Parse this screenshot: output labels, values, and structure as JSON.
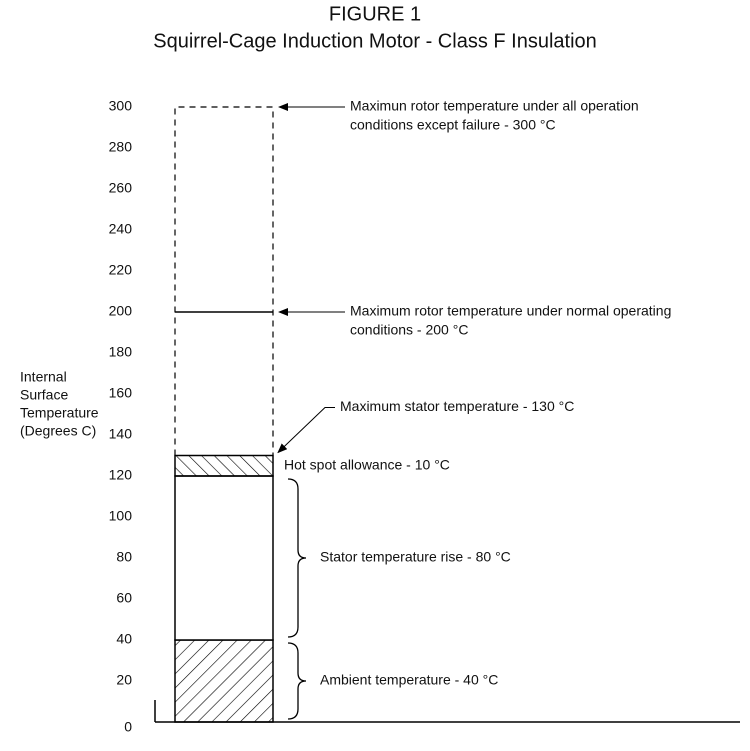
{
  "chart_data": {
    "type": "stacked-bar",
    "title": "FIGURE 1",
    "subtitle": "Squirrel-Cage Induction Motor - Class F Insulation",
    "y_label": [
      "Internal",
      "Surface",
      "Temperature",
      "(Degrees C)"
    ],
    "ylim": [
      0,
      300
    ],
    "yticks": [
      0,
      20,
      40,
      60,
      80,
      100,
      120,
      140,
      160,
      180,
      200,
      220,
      240,
      260,
      280,
      300
    ],
    "color": "#000000",
    "series": [
      {
        "name": "Ambient temperature - 40 °C",
        "values": [
          40
        ],
        "pattern": "hatch-back"
      },
      {
        "name": "Stator temperature rise - 80 °C",
        "values": [
          80
        ],
        "pattern": "none"
      },
      {
        "name": "Hot spot allowance - 10 °C",
        "values": [
          10
        ],
        "pattern": "hatch-fwd"
      }
    ],
    "limits": [
      {
        "label": [
          "Maximun rotor temperature under all operation",
          "conditions except failure - 300 °C"
        ],
        "value": 300
      },
      {
        "label": [
          "Maximum rotor temperature under normal operating",
          "conditions - 200 °C"
        ],
        "value": 200
      },
      {
        "label": [
          "Maximum stator temperature - 130 °C"
        ],
        "value": 130
      }
    ]
  }
}
